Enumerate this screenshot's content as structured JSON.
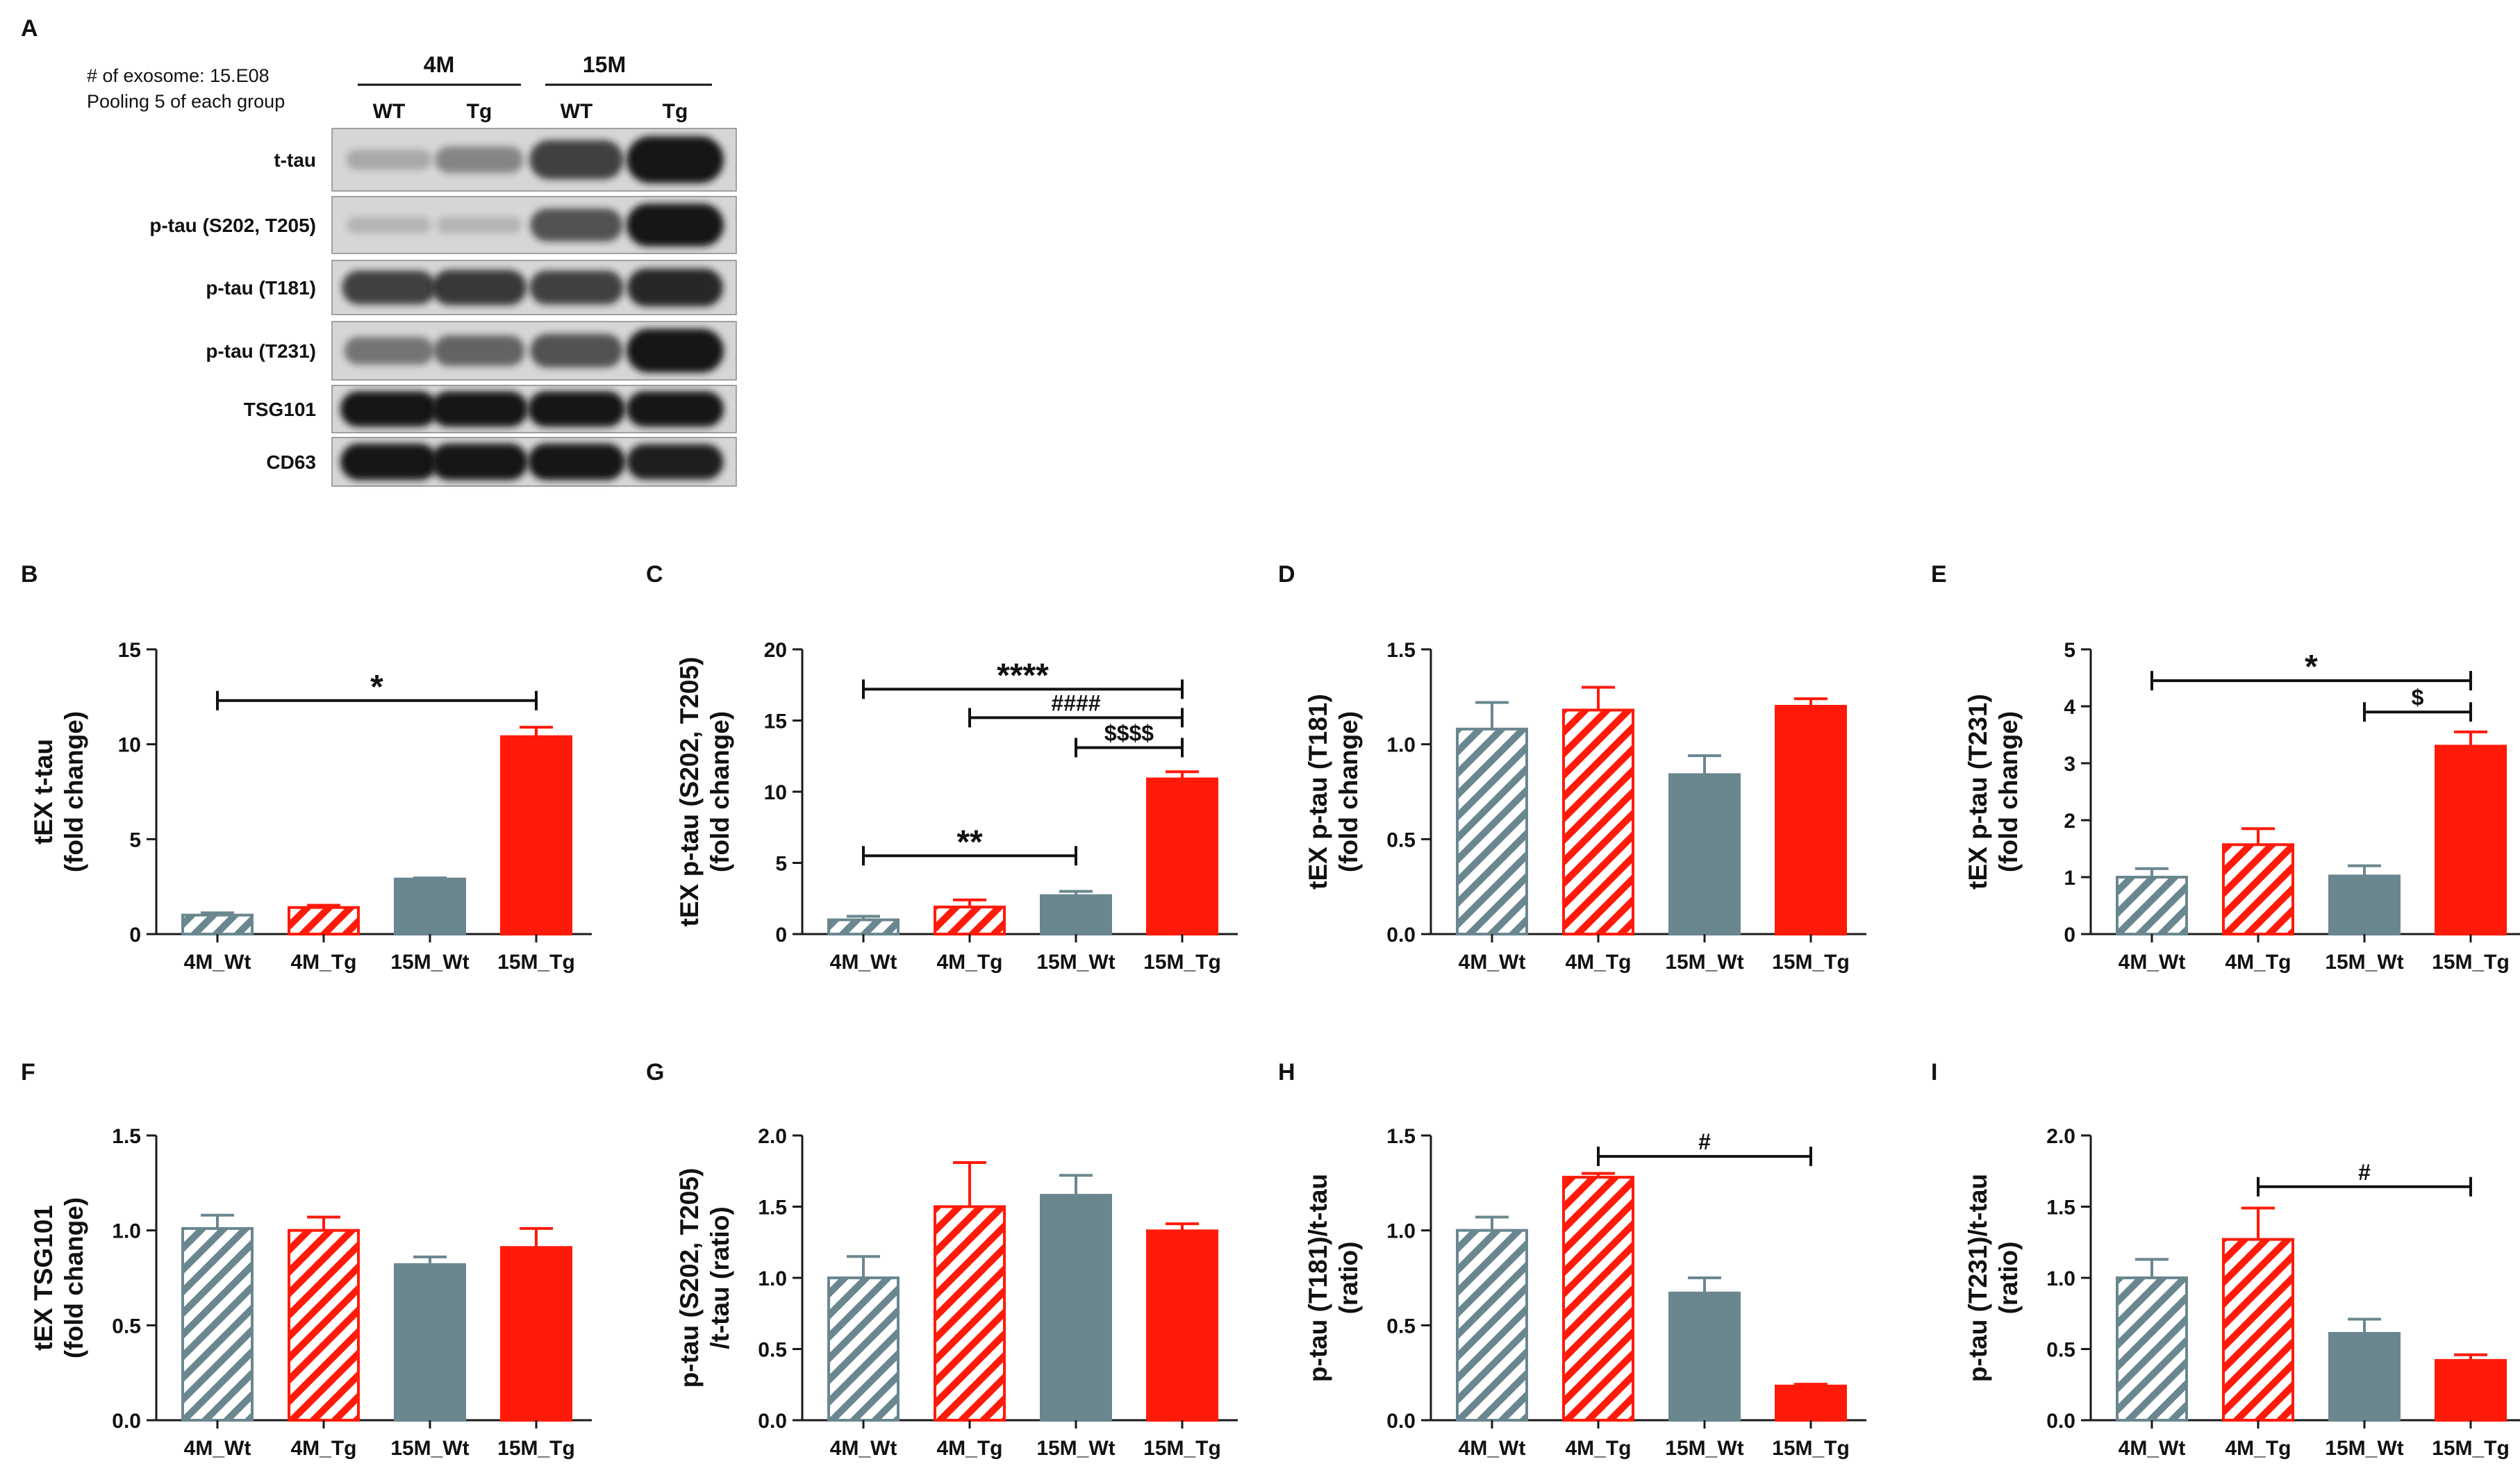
{
  "colors": {
    "wt": "#6a8790",
    "tg": "#ff1a0a",
    "axis": "#1a1a1a",
    "blot_bg": "#d6d6d6",
    "band": "#141414"
  },
  "blot": {
    "panel_letter": "A",
    "info_line1": "# of exosome: 15.E08",
    "info_line2": "Pooling 5 of each group",
    "group_4m": "4M",
    "group_15m": "15M",
    "lanes": [
      "WT",
      "Tg",
      "WT",
      "Tg"
    ],
    "rows": [
      {
        "label": "t-tau",
        "intensity": [
          0.15,
          0.35,
          0.75,
          1.0
        ]
      },
      {
        "label": "p-tau (S202, T205)",
        "intensity": [
          0.08,
          0.08,
          0.65,
          1.0
        ]
      },
      {
        "label": "p-tau (T181)",
        "intensity": [
          0.75,
          0.8,
          0.75,
          0.9
        ]
      },
      {
        "label": "p-tau (T231)",
        "intensity": [
          0.45,
          0.55,
          0.65,
          1.0
        ]
      },
      {
        "label": "TSG101",
        "intensity": [
          1.0,
          1.0,
          1.0,
          1.0
        ]
      },
      {
        "label": "CD63",
        "intensity": [
          1.0,
          1.0,
          1.0,
          0.95
        ]
      }
    ]
  },
  "chart_data": [
    {
      "panel": "B",
      "type": "bar",
      "ylabel_line1": "tEX t-tau",
      "ylabel_line2": "(fold change)",
      "categories": [
        "4M_Wt",
        "4M_Tg",
        "15M_Wt",
        "15M_Tg"
      ],
      "values": [
        1.0,
        1.4,
        2.9,
        10.4
      ],
      "errors": [
        0.12,
        0.12,
        0.06,
        0.5
      ],
      "ylim": [
        0,
        15
      ],
      "yticks": [
        0,
        5,
        10,
        15
      ],
      "tick_labels": [
        "0",
        "5",
        "10",
        "15"
      ],
      "brackets": [
        {
          "from": 0,
          "to": 3,
          "y": 12.3,
          "label": "*",
          "big": true
        }
      ]
    },
    {
      "panel": "C",
      "type": "bar",
      "ylabel_line1": "tEX p-tau (S202, T205)",
      "ylabel_line2": "(fold change)",
      "categories": [
        "4M_Wt",
        "4M_Tg",
        "15M_Wt",
        "15M_Tg"
      ],
      "values": [
        1.0,
        1.9,
        2.7,
        10.9
      ],
      "errors": [
        0.25,
        0.5,
        0.3,
        0.5
      ],
      "ylim": [
        0,
        20
      ],
      "yticks": [
        0,
        5,
        10,
        15,
        20
      ],
      "tick_labels": [
        "0",
        "5",
        "10",
        "15",
        "20"
      ],
      "brackets": [
        {
          "from": 0,
          "to": 3,
          "y": 17.2,
          "label": "****",
          "big": true
        },
        {
          "from": 1,
          "to": 3,
          "y": 15.2,
          "label": "####",
          "big": false
        },
        {
          "from": 2,
          "to": 3,
          "y": 13.1,
          "label": "$$$$",
          "big": false
        },
        {
          "from": 0,
          "to": 2,
          "y": 5.5,
          "label": "**",
          "big": true
        }
      ]
    },
    {
      "panel": "D",
      "type": "bar",
      "ylabel_line1": "tEX p-tau (T181)",
      "ylabel_line2": "(fold change)",
      "categories": [
        "4M_Wt",
        "4M_Tg",
        "15M_Wt",
        "15M_Tg"
      ],
      "values": [
        1.08,
        1.18,
        0.84,
        1.2
      ],
      "errors": [
        0.14,
        0.12,
        0.1,
        0.04
      ],
      "ylim": [
        0,
        1.5
      ],
      "yticks": [
        0,
        0.5,
        1.0,
        1.5
      ],
      "tick_labels": [
        "0.0",
        "0.5",
        "1.0",
        "1.5"
      ],
      "brackets": []
    },
    {
      "panel": "E",
      "type": "bar",
      "ylabel_line1": "tEX p-tau (T231)",
      "ylabel_line2": "(fold change)",
      "categories": [
        "4M_Wt",
        "4M_Tg",
        "15M_Wt",
        "15M_Tg"
      ],
      "values": [
        1.0,
        1.57,
        1.02,
        3.3
      ],
      "errors": [
        0.15,
        0.28,
        0.18,
        0.25
      ],
      "ylim": [
        0,
        5
      ],
      "yticks": [
        0,
        1,
        2,
        3,
        4,
        5
      ],
      "tick_labels": [
        "0",
        "1",
        "2",
        "3",
        "4",
        "5"
      ],
      "brackets": [
        {
          "from": 0,
          "to": 3,
          "y": 4.45,
          "label": "*",
          "big": true
        },
        {
          "from": 2,
          "to": 3,
          "y": 3.9,
          "label": "$",
          "big": false
        }
      ]
    },
    {
      "panel": "F",
      "type": "bar",
      "ylabel_line1": "tEX TSG101",
      "ylabel_line2": "(fold change)",
      "categories": [
        "4M_Wt",
        "4M_Tg",
        "15M_Wt",
        "15M_Tg"
      ],
      "values": [
        1.01,
        1.0,
        0.82,
        0.91
      ],
      "errors": [
        0.07,
        0.07,
        0.04,
        0.1
      ],
      "ylim": [
        0,
        1.5
      ],
      "yticks": [
        0,
        0.5,
        1.0,
        1.5
      ],
      "tick_labels": [
        "0.0",
        "0.5",
        "1.0",
        "1.5"
      ],
      "brackets": []
    },
    {
      "panel": "G",
      "type": "bar",
      "ylabel_line1": "p-tau (S202, T205)",
      "ylabel_line2": "/t-tau (ratio)",
      "categories": [
        "4M_Wt",
        "4M_Tg",
        "15M_Wt",
        "15M_Tg"
      ],
      "values": [
        1.0,
        1.5,
        1.58,
        1.33
      ],
      "errors": [
        0.15,
        0.31,
        0.14,
        0.05
      ],
      "ylim": [
        0,
        2.0
      ],
      "yticks": [
        0,
        0.5,
        1.0,
        1.5,
        2.0
      ],
      "tick_labels": [
        "0.0",
        "0.5",
        "1.0",
        "1.5",
        "2.0"
      ],
      "brackets": []
    },
    {
      "panel": "H",
      "type": "bar",
      "ylabel_line1": "p-tau (T181)/t-tau",
      "ylabel_line2": "(ratio)",
      "categories": [
        "4M_Wt",
        "4M_Tg",
        "15M_Wt",
        "15M_Tg"
      ],
      "values": [
        1.0,
        1.28,
        0.67,
        0.18
      ],
      "errors": [
        0.07,
        0.02,
        0.08,
        0.01
      ],
      "ylim": [
        0,
        1.5
      ],
      "yticks": [
        0,
        0.5,
        1.0,
        1.5
      ],
      "tick_labels": [
        "0.0",
        "0.5",
        "1.0",
        "1.5"
      ],
      "brackets": [
        {
          "from": 1,
          "to": 3,
          "y": 1.39,
          "label": "#",
          "big": false
        }
      ]
    },
    {
      "panel": "I",
      "type": "bar",
      "ylabel_line1": "p-tau (T231)/t-tau",
      "ylabel_line2": "(ratio)",
      "categories": [
        "4M_Wt",
        "4M_Tg",
        "15M_Wt",
        "15M_Tg"
      ],
      "values": [
        1.0,
        1.27,
        0.61,
        0.42
      ],
      "errors": [
        0.13,
        0.22,
        0.1,
        0.04
      ],
      "ylim": [
        0,
        2.0
      ],
      "yticks": [
        0,
        0.5,
        1.0,
        1.5,
        2.0
      ],
      "tick_labels": [
        "0.0",
        "0.5",
        "1.0",
        "1.5",
        "2.0"
      ],
      "brackets": [
        {
          "from": 1,
          "to": 3,
          "y": 1.64,
          "label": "#",
          "big": false
        }
      ]
    }
  ]
}
